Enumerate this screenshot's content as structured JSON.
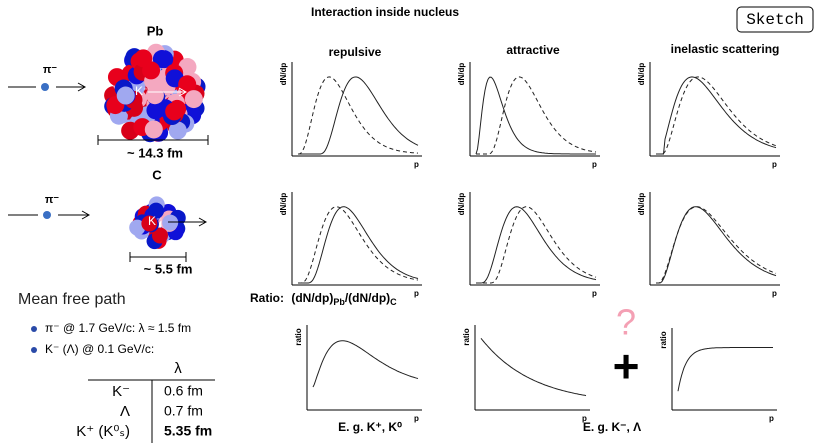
{
  "header": {
    "title": "Interaction inside nucleus",
    "tag": "Sketch"
  },
  "nuclei": [
    {
      "name": "Pb",
      "projectile": "π⁻",
      "kaon": "K⁻",
      "size": "~ 14.3 fm"
    },
    {
      "name": "C",
      "projectile": "π⁻",
      "kaon": "K⁻",
      "size": "~ 5.5 fm"
    }
  ],
  "columns": [
    "repulsive",
    "attractive",
    "inelastic scattering"
  ],
  "axes": {
    "y": "dN/dp",
    "x": "p",
    "ratio": "ratio"
  },
  "ratio_title": {
    "prefix": "Ratio:",
    "num": "(dN/dp)",
    "num_sub": "Pb",
    "slash": "/(dN/dp)",
    "den_sub": "C"
  },
  "examples": [
    "E. g.  K⁺, K⁰",
    "E. g.  K⁻,  Λ"
  ],
  "symbols": {
    "question": "?",
    "plus": "+"
  },
  "mean_free_path": {
    "title": "Mean free path",
    "bullets": [
      "π⁻ @ 1.7 GeV/c: λ ≈ 1.5 fm",
      "K⁻ (Λ) @ 0.1 GeV/c:"
    ],
    "table": {
      "header": "λ",
      "rows": [
        [
          "K⁻",
          "0.6 fm"
        ],
        [
          "Λ",
          "0.7 fm"
        ],
        [
          "K⁺ (K⁰ₛ)",
          "5.35 fm"
        ]
      ]
    }
  }
}
